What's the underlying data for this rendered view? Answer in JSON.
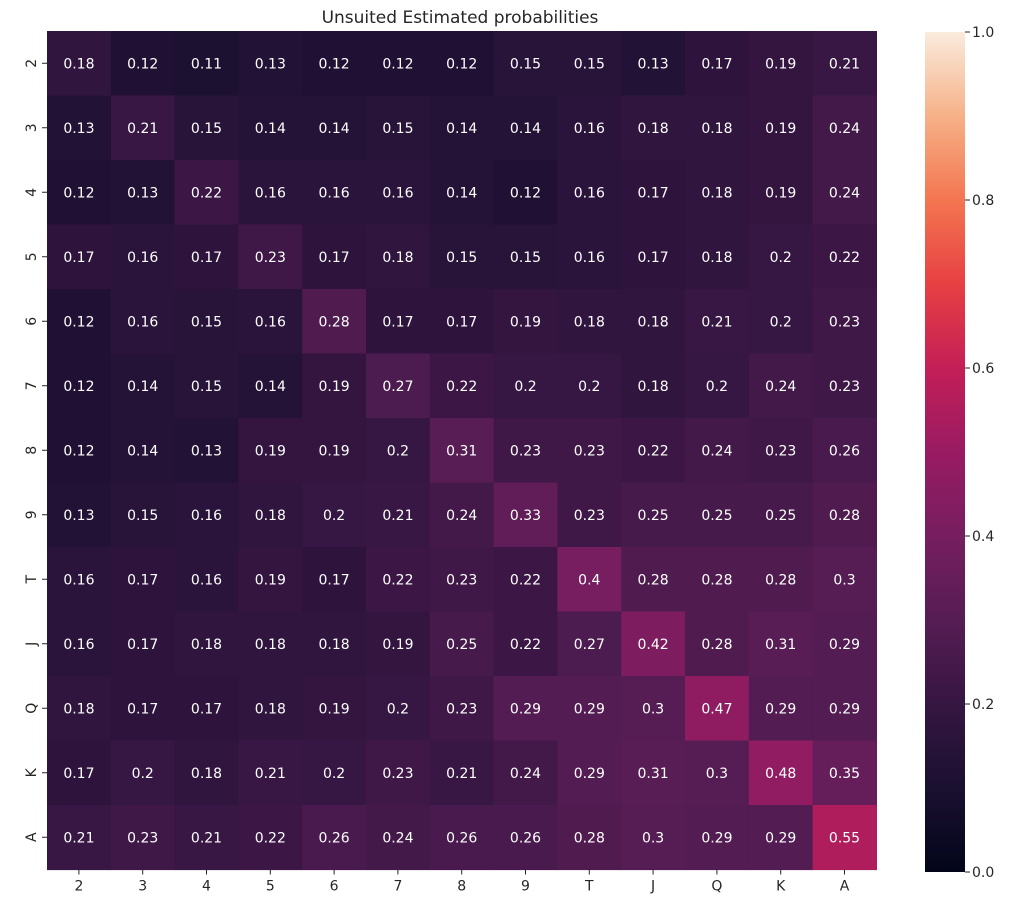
{
  "chart_data": {
    "type": "heatmap",
    "title": "Unsuited Estimated probabilities",
    "xlabel": "",
    "ylabel": "",
    "x_categories": [
      "2",
      "3",
      "4",
      "5",
      "6",
      "7",
      "8",
      "9",
      "T",
      "J",
      "Q",
      "K",
      "A"
    ],
    "y_categories": [
      "2",
      "3",
      "4",
      "5",
      "6",
      "7",
      "8",
      "9",
      "T",
      "J",
      "Q",
      "K",
      "A"
    ],
    "values": [
      [
        0.18,
        0.12,
        0.11,
        0.13,
        0.12,
        0.12,
        0.12,
        0.15,
        0.15,
        0.13,
        0.17,
        0.19,
        0.21
      ],
      [
        0.13,
        0.21,
        0.15,
        0.14,
        0.14,
        0.15,
        0.14,
        0.14,
        0.16,
        0.18,
        0.18,
        0.19,
        0.24
      ],
      [
        0.12,
        0.13,
        0.22,
        0.16,
        0.16,
        0.16,
        0.14,
        0.12,
        0.16,
        0.17,
        0.18,
        0.19,
        0.24
      ],
      [
        0.17,
        0.16,
        0.17,
        0.23,
        0.17,
        0.18,
        0.15,
        0.15,
        0.16,
        0.17,
        0.18,
        0.2,
        0.22
      ],
      [
        0.12,
        0.16,
        0.15,
        0.16,
        0.28,
        0.17,
        0.17,
        0.19,
        0.18,
        0.18,
        0.21,
        0.2,
        0.23
      ],
      [
        0.12,
        0.14,
        0.15,
        0.14,
        0.19,
        0.27,
        0.22,
        0.2,
        0.2,
        0.18,
        0.2,
        0.24,
        0.23
      ],
      [
        0.12,
        0.14,
        0.13,
        0.19,
        0.19,
        0.2,
        0.31,
        0.23,
        0.23,
        0.22,
        0.24,
        0.23,
        0.26
      ],
      [
        0.13,
        0.15,
        0.16,
        0.18,
        0.2,
        0.21,
        0.24,
        0.33,
        0.23,
        0.25,
        0.25,
        0.25,
        0.28
      ],
      [
        0.16,
        0.17,
        0.16,
        0.19,
        0.17,
        0.22,
        0.23,
        0.22,
        0.4,
        0.28,
        0.28,
        0.28,
        0.3
      ],
      [
        0.16,
        0.17,
        0.18,
        0.18,
        0.18,
        0.19,
        0.25,
        0.22,
        0.27,
        0.42,
        0.28,
        0.31,
        0.29
      ],
      [
        0.18,
        0.17,
        0.17,
        0.18,
        0.19,
        0.2,
        0.23,
        0.29,
        0.29,
        0.3,
        0.47,
        0.29,
        0.29
      ],
      [
        0.17,
        0.2,
        0.18,
        0.21,
        0.2,
        0.23,
        0.21,
        0.24,
        0.29,
        0.31,
        0.3,
        0.48,
        0.35
      ],
      [
        0.21,
        0.23,
        0.21,
        0.22,
        0.26,
        0.24,
        0.26,
        0.26,
        0.28,
        0.3,
        0.29,
        0.29,
        0.55
      ]
    ],
    "vmin": 0,
    "vmax": 1,
    "colormap": "rocket",
    "colorbar": {
      "ticks": [
        0,
        0.2,
        0.4,
        0.6,
        0.8,
        1
      ],
      "tick_labels": [
        "0.0",
        "0.2",
        "0.4",
        "0.6",
        "0.8",
        "1.0"
      ]
    },
    "annot_light_color": "#ffffff",
    "annot_dark_color": "#262626"
  }
}
